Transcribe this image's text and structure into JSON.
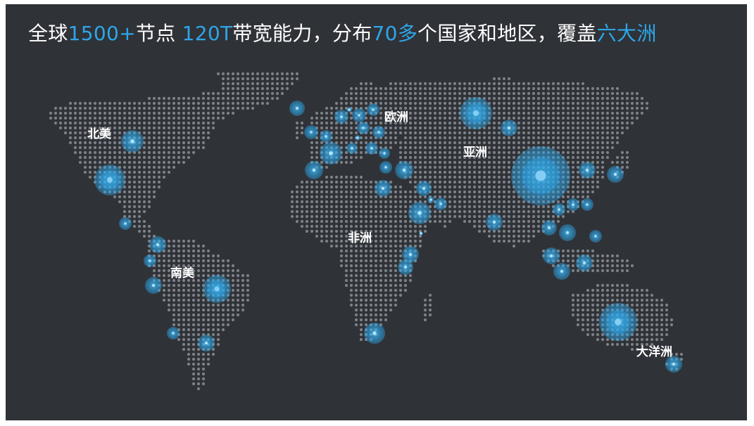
{
  "headline": [
    {
      "text": "全球",
      "hl": false
    },
    {
      "text": "1500+",
      "hl": true
    },
    {
      "text": "节点 ",
      "hl": false
    },
    {
      "text": "120T",
      "hl": true
    },
    {
      "text": "带宽能力，分布",
      "hl": false
    },
    {
      "text": "70多",
      "hl": true
    },
    {
      "text": "个国家和地区，覆盖",
      "hl": false
    },
    {
      "text": "六大洲",
      "hl": true
    }
  ],
  "regions": {
    "north_america": "北美",
    "south_america": "南美",
    "europe": "欧洲",
    "asia": "亚洲",
    "africa": "非洲",
    "oceania": "大洋洲"
  },
  "colors": {
    "background": "#2f3237",
    "dot": "#7d8187",
    "accent": "#2ea6e8",
    "text": "#ffffff"
  }
}
